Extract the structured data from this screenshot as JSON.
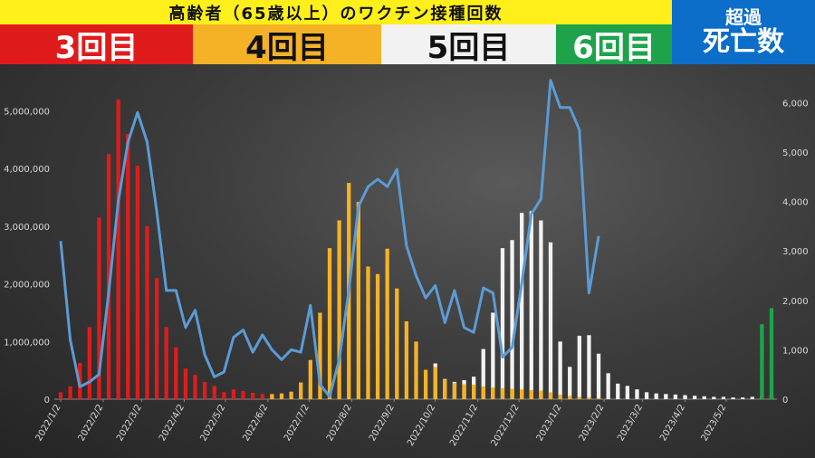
{
  "header": {
    "title": "高齢者（65歳以上）のワクチン接種回数",
    "doses": [
      {
        "label": "3回目",
        "color": "#e01b1b",
        "text_color": "#ffffff"
      },
      {
        "label": "4回目",
        "color": "#f5b227",
        "text_color": "#111111"
      },
      {
        "label": "5回目",
        "color": "#f2f2f2",
        "text_color": "#111111"
      },
      {
        "label": "6回目",
        "color": "#1ea34a",
        "text_color": "#ffffff"
      }
    ],
    "excess_deaths": {
      "line1": "超過",
      "line2": "死亡数",
      "color": "#0c6ec9"
    }
  },
  "chart_data": {
    "type": "bar+line",
    "x_ticks": [
      "2022/1/2",
      "2022/2/2",
      "2022/3/2",
      "2022/4/2",
      "2022/5/2",
      "2022/6/2",
      "2022/7/2",
      "2022/8/2",
      "2022/9/2",
      "2022/10/2",
      "2022/11/2",
      "2022/12/2",
      "2023/1/2",
      "2023/2/2",
      "2023/3/2",
      "2023/4/2",
      "2023/5/2"
    ],
    "left_axis": {
      "ticks": [
        "0",
        "1,000,000",
        "2,000,000",
        "3,000,000",
        "4,000,000",
        "5,000,000"
      ],
      "ylim": [
        0,
        5400000
      ]
    },
    "right_axis": {
      "ticks": [
        "0",
        "1,000",
        "2,000",
        "3,000",
        "4,000",
        "5,000",
        "6,000"
      ],
      "ylim": [
        0,
        6300
      ]
    },
    "grid": false,
    "bar_series": [
      {
        "name": "3回目",
        "color": "#e01b1b",
        "points": [
          [
            "2022/1/2",
            120000
          ],
          [
            "2022/1/9",
            220000
          ],
          [
            "2022/1/16",
            630000
          ],
          [
            "2022/1/23",
            1250000
          ],
          [
            "2022/1/30",
            3150000
          ],
          [
            "2022/2/6",
            4250000
          ],
          [
            "2022/2/13",
            5200000
          ],
          [
            "2022/2/20",
            4600000
          ],
          [
            "2022/2/27",
            4050000
          ],
          [
            "2022/3/6",
            3000000
          ],
          [
            "2022/3/13",
            2100000
          ],
          [
            "2022/3/20",
            1250000
          ],
          [
            "2022/3/27",
            900000
          ],
          [
            "2022/4/3",
            530000
          ],
          [
            "2022/4/10",
            420000
          ],
          [
            "2022/4/17",
            300000
          ],
          [
            "2022/4/24",
            230000
          ],
          [
            "2022/5/1",
            120000
          ],
          [
            "2022/5/8",
            170000
          ],
          [
            "2022/5/15",
            140000
          ],
          [
            "2022/5/22",
            110000
          ],
          [
            "2022/5/29",
            90000
          ],
          [
            "2022/6/5",
            70000
          ],
          [
            "2022/6/12",
            50000
          ],
          [
            "2022/6/19",
            40000
          ],
          [
            "2022/6/26",
            30000
          ]
        ]
      },
      {
        "name": "4回目",
        "color": "#f5b227",
        "points": [
          [
            "2022/6/5",
            90000
          ],
          [
            "2022/6/12",
            100000
          ],
          [
            "2022/6/19",
            130000
          ],
          [
            "2022/6/26",
            290000
          ],
          [
            "2022/7/3",
            680000
          ],
          [
            "2022/7/10",
            1500000
          ],
          [
            "2022/7/17",
            2620000
          ],
          [
            "2022/7/24",
            3100000
          ],
          [
            "2022/7/31",
            3750000
          ],
          [
            "2022/8/7",
            3420000
          ],
          [
            "2022/8/14",
            2300000
          ],
          [
            "2022/8/21",
            2170000
          ],
          [
            "2022/8/28",
            2610000
          ],
          [
            "2022/9/4",
            1920000
          ],
          [
            "2022/9/11",
            1350000
          ],
          [
            "2022/9/18",
            1000000
          ],
          [
            "2022/9/25",
            510000
          ],
          [
            "2022/10/2",
            560000
          ],
          [
            "2022/10/9",
            340000
          ],
          [
            "2022/10/16",
            280000
          ],
          [
            "2022/10/23",
            260000
          ],
          [
            "2022/10/30",
            250000
          ],
          [
            "2022/11/6",
            220000
          ],
          [
            "2022/11/13",
            200000
          ],
          [
            "2022/11/20",
            190000
          ],
          [
            "2022/11/27",
            180000
          ],
          [
            "2022/12/4",
            170000
          ],
          [
            "2022/12/11",
            160000
          ],
          [
            "2022/12/18",
            150000
          ],
          [
            "2022/12/25",
            120000
          ],
          [
            "2023/1/1",
            80000
          ],
          [
            "2023/1/8",
            60000
          ],
          [
            "2023/1/15",
            40000
          ],
          [
            "2023/1/22",
            30000
          ],
          [
            "2023/1/29",
            20000
          ]
        ]
      },
      {
        "name": "5回目",
        "color": "#f2f2f2",
        "points": [
          [
            "2022/9/25",
            30000
          ],
          [
            "2022/10/2",
            620000
          ],
          [
            "2022/10/9",
            350000
          ],
          [
            "2022/10/16",
            300000
          ],
          [
            "2022/10/23",
            330000
          ],
          [
            "2022/10/30",
            390000
          ],
          [
            "2022/11/6",
            870000
          ],
          [
            "2022/11/13",
            1500000
          ],
          [
            "2022/11/20",
            2620000
          ],
          [
            "2022/11/27",
            2760000
          ],
          [
            "2022/12/4",
            3230000
          ],
          [
            "2022/12/11",
            3260000
          ],
          [
            "2022/12/18",
            3100000
          ],
          [
            "2022/12/25",
            2720000
          ],
          [
            "2023/1/1",
            1000000
          ],
          [
            "2023/1/8",
            560000
          ],
          [
            "2023/1/15",
            1100000
          ],
          [
            "2023/1/22",
            1110000
          ],
          [
            "2023/1/29",
            790000
          ],
          [
            "2023/2/5",
            450000
          ],
          [
            "2023/2/12",
            270000
          ],
          [
            "2023/2/19",
            230000
          ],
          [
            "2023/2/26",
            170000
          ],
          [
            "2023/3/5",
            120000
          ],
          [
            "2023/3/12",
            100000
          ],
          [
            "2023/3/19",
            90000
          ],
          [
            "2023/3/26",
            80000
          ],
          [
            "2023/4/2",
            70000
          ],
          [
            "2023/4/9",
            60000
          ],
          [
            "2023/4/16",
            50000
          ],
          [
            "2023/4/23",
            40000
          ],
          [
            "2023/4/30",
            40000
          ],
          [
            "2023/5/7",
            30000
          ],
          [
            "2023/5/14",
            30000
          ],
          [
            "2023/5/21",
            40000
          ],
          [
            "2023/5/28",
            60000
          ],
          [
            "2023/6/4",
            70000
          ]
        ]
      },
      {
        "name": "6回目",
        "color": "#1ea34a",
        "points": [
          [
            "2023/5/28",
            1300000
          ],
          [
            "2023/6/4",
            1580000
          ]
        ]
      }
    ],
    "line_series": {
      "name": "超過死亡数",
      "color": "#5b9bd5",
      "points": [
        [
          "2022/1/2",
          3200
        ],
        [
          "2022/1/9",
          1200
        ],
        [
          "2022/1/16",
          250
        ],
        [
          "2022/1/23",
          350
        ],
        [
          "2022/1/30",
          500
        ],
        [
          "2022/2/6",
          2150
        ],
        [
          "2022/2/13",
          4000
        ],
        [
          "2022/2/20",
          5200
        ],
        [
          "2022/2/27",
          5800
        ],
        [
          "2022/3/6",
          5200
        ],
        [
          "2022/3/13",
          3800
        ],
        [
          "2022/3/20",
          2200
        ],
        [
          "2022/3/27",
          2200
        ],
        [
          "2022/4/3",
          1450
        ],
        [
          "2022/4/10",
          1800
        ],
        [
          "2022/4/17",
          900
        ],
        [
          "2022/4/24",
          450
        ],
        [
          "2022/5/1",
          550
        ],
        [
          "2022/5/8",
          1250
        ],
        [
          "2022/5/15",
          1400
        ],
        [
          "2022/5/22",
          950
        ],
        [
          "2022/5/29",
          1300
        ],
        [
          "2022/6/5",
          1000
        ],
        [
          "2022/6/12",
          800
        ],
        [
          "2022/6/19",
          1000
        ],
        [
          "2022/6/26",
          950
        ],
        [
          "2022/7/3",
          1900
        ],
        [
          "2022/7/10",
          300
        ],
        [
          "2022/7/17",
          50
        ],
        [
          "2022/7/24",
          800
        ],
        [
          "2022/7/31",
          2200
        ],
        [
          "2022/8/7",
          3900
        ],
        [
          "2022/8/14",
          4300
        ],
        [
          "2022/8/21",
          4450
        ],
        [
          "2022/8/28",
          4300
        ],
        [
          "2022/9/4",
          4650
        ],
        [
          "2022/9/11",
          3100
        ],
        [
          "2022/9/18",
          2500
        ],
        [
          "2022/9/25",
          2050
        ],
        [
          "2022/10/2",
          2300
        ],
        [
          "2022/10/9",
          1550
        ],
        [
          "2022/10/16",
          2200
        ],
        [
          "2022/10/23",
          1450
        ],
        [
          "2022/10/30",
          1350
        ],
        [
          "2022/11/6",
          2250
        ],
        [
          "2022/11/13",
          2150
        ],
        [
          "2022/11/20",
          850
        ],
        [
          "2022/11/27",
          1050
        ],
        [
          "2022/12/4",
          2350
        ],
        [
          "2022/12/11",
          3750
        ],
        [
          "2022/12/18",
          4050
        ],
        [
          "2022/12/25",
          6450
        ],
        [
          "2023/1/1",
          5900
        ],
        [
          "2023/1/8",
          5900
        ],
        [
          "2023/1/15",
          5450
        ],
        [
          "2023/1/22",
          2150
        ],
        [
          "2023/1/29",
          3300
        ]
      ]
    }
  }
}
